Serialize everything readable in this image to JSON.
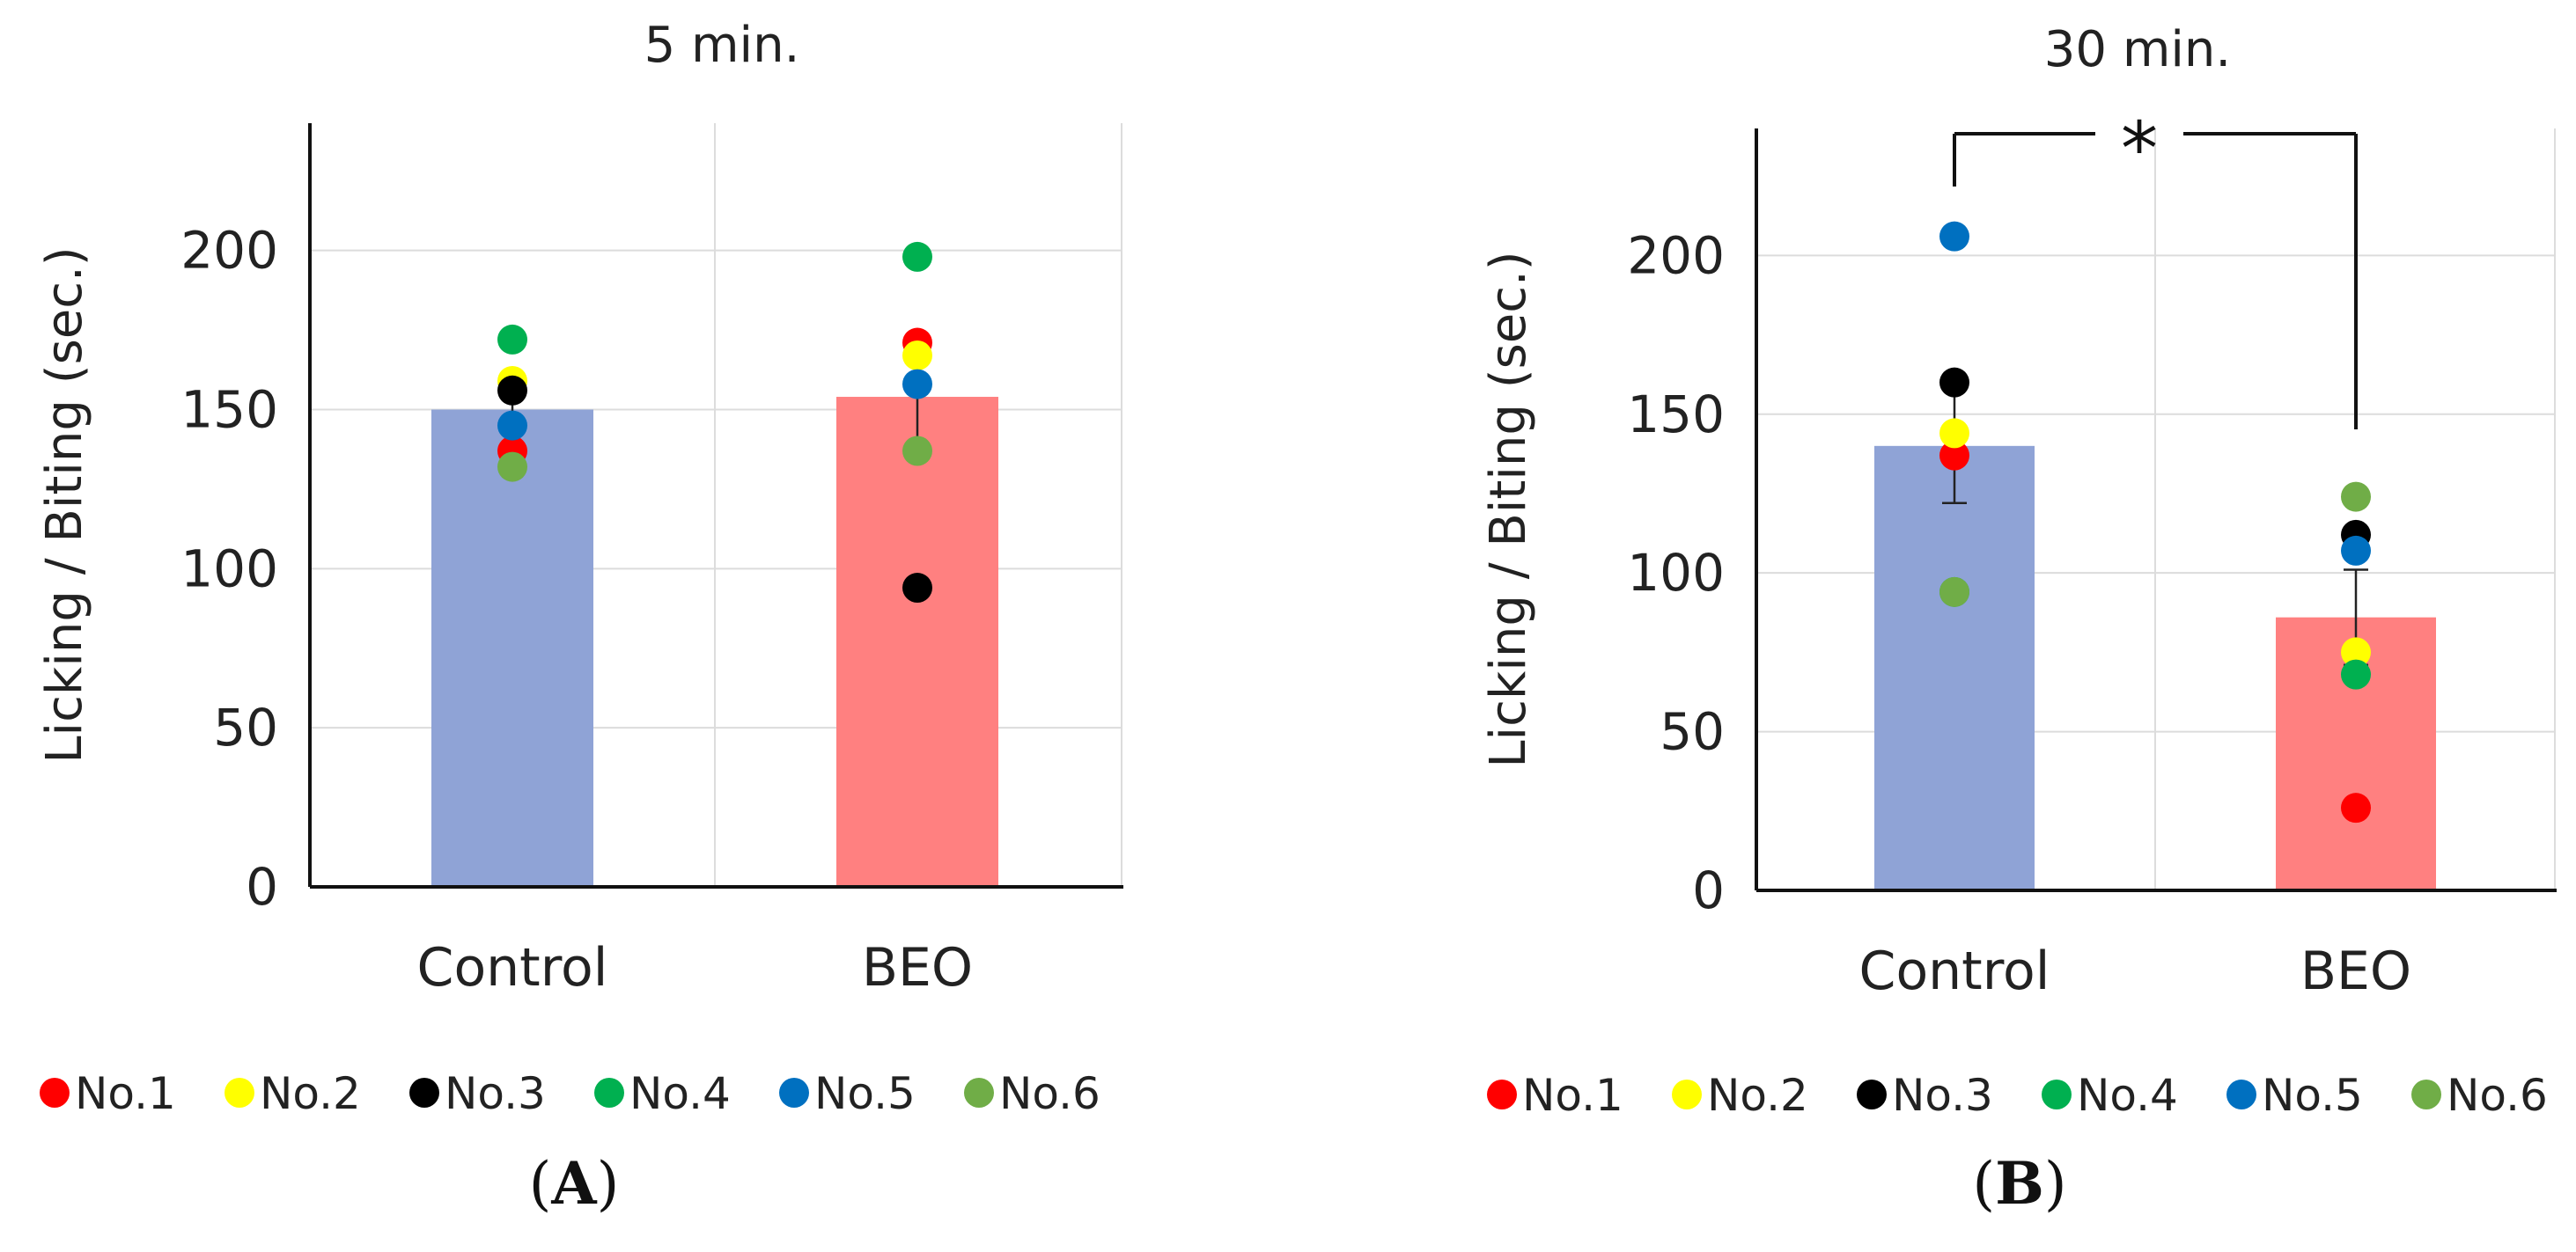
{
  "chart_data": [
    {
      "type": "bar",
      "panel_label": "A",
      "title": "5 min.",
      "ylabel": "Licking / Biting (sec.)",
      "xlabel": "",
      "ylim": [
        0,
        240
      ],
      "yticks": [
        0,
        50,
        100,
        150,
        200
      ],
      "grid": true,
      "categories": [
        "Control",
        "BEO"
      ],
      "values": [
        150,
        154
      ],
      "errors": [
        4,
        15
      ],
      "bar_colors": [
        "#8fa3d6",
        "#ff8080"
      ],
      "individual_points": [
        {
          "name": "No.1",
          "color": "#ff0000",
          "values": [
            137,
            171
          ]
        },
        {
          "name": "No.2",
          "color": "#ffff00",
          "values": [
            159,
            167
          ]
        },
        {
          "name": "No.3",
          "color": "#000000",
          "values": [
            156,
            94
          ]
        },
        {
          "name": "No.4",
          "color": "#00b050",
          "values": [
            172,
            198
          ]
        },
        {
          "name": "No.5",
          "color": "#0070c0",
          "values": [
            145,
            158
          ]
        },
        {
          "name": "No.6",
          "color": "#70ad47",
          "values": [
            132,
            137
          ]
        }
      ],
      "significance": null
    },
    {
      "type": "bar",
      "panel_label": "B",
      "title": "30 min.",
      "ylabel": "Licking / Biting (sec.)",
      "xlabel": "",
      "ylim": [
        0,
        240
      ],
      "yticks": [
        0,
        50,
        100,
        150,
        200
      ],
      "grid": true,
      "categories": [
        "Control",
        "BEO"
      ],
      "values": [
        140,
        86
      ],
      "errors": [
        18,
        15
      ],
      "bar_colors": [
        "#8fa3d6",
        "#ff8080"
      ],
      "individual_points": [
        {
          "name": "No.1",
          "color": "#ff0000",
          "values": [
            137,
            26
          ]
        },
        {
          "name": "No.2",
          "color": "#ffff00",
          "values": [
            144,
            75
          ]
        },
        {
          "name": "No.3",
          "color": "#000000",
          "values": [
            160,
            112
          ]
        },
        {
          "name": "No.4",
          "color": "#00b050",
          "values": [
            94,
            68
          ]
        },
        {
          "name": "No.5",
          "color": "#0070c0",
          "values": [
            206,
            107
          ]
        },
        {
          "name": "No.6",
          "color": "#70ad47",
          "values": [
            94,
            124
          ]
        }
      ],
      "significance": "*"
    }
  ],
  "legend_names": [
    "No.1",
    "No.2",
    "No.3",
    "No.4",
    "No.5",
    "No.6"
  ],
  "legend_colors": [
    "#ff0000",
    "#ffff00",
    "#000000",
    "#00b050",
    "#0070c0",
    "#70ad47"
  ]
}
